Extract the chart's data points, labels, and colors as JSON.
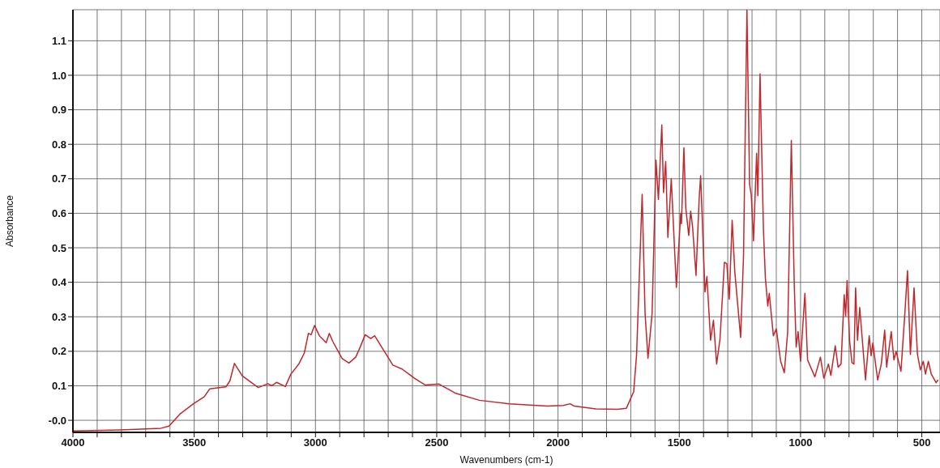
{
  "chart_data": {
    "type": "line",
    "xlabel": "Wavenumbers (cm-1)",
    "ylabel": "Absorbance",
    "color": "#c0282d",
    "marker": "none",
    "line_style": "solid",
    "grid": true,
    "xlim": [
      4000,
      425
    ],
    "ylim": [
      -0.035,
      1.19
    ],
    "xticks": [
      4000,
      {
        "value": 3900,
        "label": null
      },
      {
        "value": 3800,
        "label": null
      },
      {
        "value": 3700,
        "label": null
      },
      {
        "value": 3600,
        "label": null
      },
      3500,
      {
        "value": 3400,
        "label": null
      },
      {
        "value": 3300,
        "label": null
      },
      {
        "value": 3200,
        "label": null
      },
      {
        "value": 3100,
        "label": null
      },
      3000,
      {
        "value": 2900,
        "label": null
      },
      {
        "value": 2800,
        "label": null
      },
      {
        "value": 2700,
        "label": null
      },
      {
        "value": 2600,
        "label": null
      },
      2500,
      {
        "value": 2400,
        "label": null
      },
      {
        "value": 2300,
        "label": null
      },
      {
        "value": 2200,
        "label": null
      },
      {
        "value": 2100,
        "label": null
      },
      2000,
      {
        "value": 1900,
        "label": null
      },
      {
        "value": 1800,
        "label": null
      },
      {
        "value": 1700,
        "label": null
      },
      {
        "value": 1600,
        "label": null
      },
      1500,
      {
        "value": 1400,
        "label": null
      },
      {
        "value": 1300,
        "label": null
      },
      {
        "value": 1200,
        "label": null
      },
      {
        "value": 1100,
        "label": null
      },
      1000,
      {
        "value": 900,
        "label": null
      },
      {
        "value": 800,
        "label": null
      },
      {
        "value": 700,
        "label": null
      },
      {
        "value": 600,
        "label": null
      },
      500
    ],
    "yticks": [
      {
        "value": 0,
        "label": "-0.0"
      },
      0.1,
      0.2,
      0.3,
      0.4,
      0.5,
      0.6,
      0.7,
      0.8,
      0.9,
      {
        "value": 1,
        "label": "1.0"
      },
      1.1
    ],
    "x": [
      4000,
      3805,
      3637,
      3604,
      3559,
      3503,
      3459,
      3436,
      3369,
      3353,
      3334,
      3302,
      3236,
      3196,
      3180,
      3160,
      3124,
      3102,
      3068,
      3046,
      3029,
      3018,
      3004,
      2984,
      2956,
      2943,
      2929,
      2890,
      2862,
      2834,
      2817,
      2795,
      2772,
      2756,
      2725,
      2681,
      2642,
      2592,
      2547,
      2491,
      2424,
      2324,
      2201,
      2045,
      1978,
      1950,
      1933,
      1844,
      1755,
      1718,
      1688,
      1676,
      1653,
      1641,
      1629,
      1612,
      1596,
      1586,
      1572,
      1565,
      1556,
      1547,
      1533,
      1512,
      1494,
      1491,
      1481,
      1473,
      1461,
      1453,
      1445,
      1431,
      1418,
      1412,
      1394,
      1386,
      1371,
      1359,
      1346,
      1332,
      1314,
      1304,
      1294,
      1282,
      1271,
      1247,
      1235,
      1221,
      1210,
      1203,
      1194,
      1181,
      1176,
      1167,
      1153,
      1145,
      1135,
      1129,
      1112,
      1100,
      1082,
      1067,
      1053,
      1038,
      1026,
      1018,
      1010,
      1000,
      982,
      971,
      941,
      918,
      904,
      885,
      875,
      857,
      845,
      833,
      820,
      814,
      808,
      798,
      788,
      780,
      773,
      765,
      756,
      732,
      717,
      709,
      702,
      682,
      667,
      653,
      645,
      626,
      615,
      606,
      586,
      571,
      559,
      547,
      532,
      518,
      506,
      494,
      485,
      473,
      461,
      441,
      433
    ],
    "values": [
      -0.031,
      -0.028,
      -0.023,
      -0.017,
      0.018,
      0.048,
      0.068,
      0.091,
      0.097,
      0.114,
      0.165,
      0.129,
      0.095,
      0.106,
      0.1,
      0.11,
      0.098,
      0.133,
      0.164,
      0.195,
      0.252,
      0.248,
      0.275,
      0.245,
      0.225,
      0.252,
      0.229,
      0.179,
      0.166,
      0.183,
      0.21,
      0.248,
      0.237,
      0.245,
      0.21,
      0.16,
      0.148,
      0.122,
      0.102,
      0.105,
      0.079,
      0.058,
      0.048,
      0.041,
      0.043,
      0.048,
      0.041,
      0.033,
      0.032,
      0.035,
      0.083,
      0.19,
      0.655,
      0.31,
      0.18,
      0.31,
      0.754,
      0.64,
      0.856,
      0.66,
      0.75,
      0.53,
      0.7,
      0.385,
      0.6,
      0.57,
      0.79,
      0.614,
      0.536,
      0.606,
      0.56,
      0.42,
      0.643,
      0.709,
      0.372,
      0.417,
      0.232,
      0.29,
      0.163,
      0.236,
      0.458,
      0.454,
      0.351,
      0.58,
      0.43,
      0.24,
      0.479,
      1.19,
      0.684,
      0.651,
      0.52,
      0.774,
      0.651,
      1.004,
      0.553,
      0.413,
      0.331,
      0.368,
      0.245,
      0.265,
      0.171,
      0.138,
      0.257,
      0.811,
      0.397,
      0.212,
      0.257,
      0.171,
      0.368,
      0.175,
      0.126,
      0.183,
      0.122,
      0.163,
      0.13,
      0.216,
      0.154,
      0.163,
      0.364,
      0.302,
      0.405,
      0.232,
      0.167,
      0.163,
      0.384,
      0.232,
      0.327,
      0.117,
      0.245,
      0.187,
      0.224,
      0.117,
      0.163,
      0.261,
      0.154,
      0.257,
      0.175,
      0.2,
      0.142,
      0.298,
      0.434,
      0.191,
      0.384,
      0.191,
      0.146,
      0.171,
      0.134,
      0.171,
      0.134,
      0.109,
      0.117
    ]
  }
}
